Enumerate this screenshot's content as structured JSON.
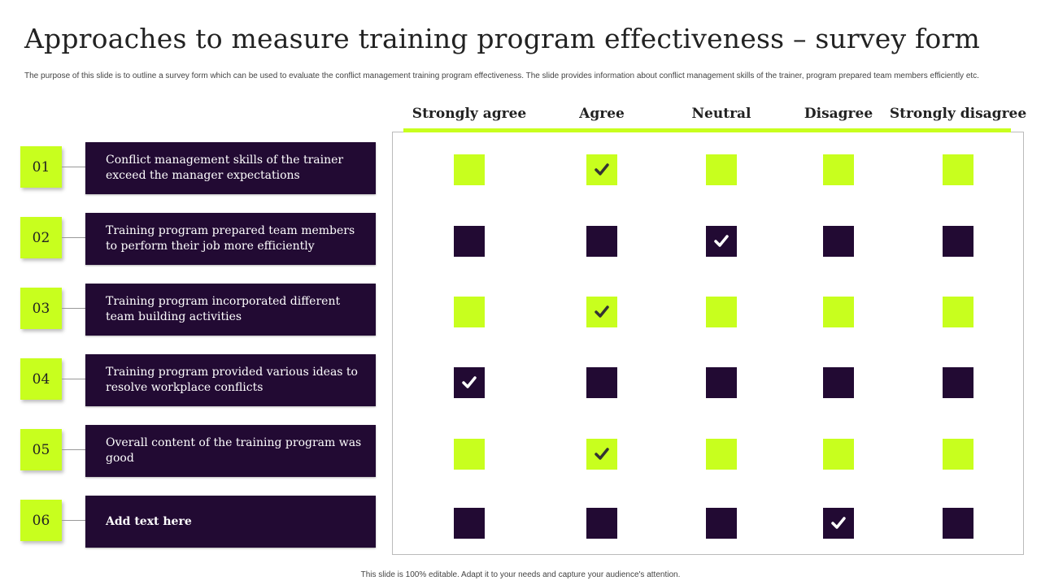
{
  "title": "Approaches to measure training program effectiveness – survey form",
  "description": "The purpose of this slide is to outline a survey form which can be used to evaluate the conflict management training program effectiveness. The slide provides information about conflict management skills of the trainer, program prepared team members efficiently etc.",
  "columns": [
    "Strongly agree",
    "Agree",
    "Neutral",
    "Disagree",
    "Strongly disagree"
  ],
  "rows": [
    {
      "num": "01",
      "text": "Conflict management skills of the trainer exceed the manager expectations",
      "checked": 1,
      "style": "lime"
    },
    {
      "num": "02",
      "text": "Training program prepared team members to perform their job more efficiently",
      "checked": 2,
      "style": "dark"
    },
    {
      "num": "03",
      "text": "Training program incorporated different team building activities",
      "checked": 1,
      "style": "lime"
    },
    {
      "num": "04",
      "text": "Training program provided various ideas to resolve workplace conflicts",
      "checked": 0,
      "style": "dark"
    },
    {
      "num": "05",
      "text": "Overall content of the training program was good",
      "checked": 1,
      "style": "lime"
    },
    {
      "num": "06",
      "text": "Add text here",
      "checked": 3,
      "style": "dark"
    }
  ],
  "colors": {
    "lime": "#c8ff1e",
    "dark": "#220a33"
  },
  "footer": "This slide is 100% editable. Adapt it to your needs and capture your audience's attention."
}
